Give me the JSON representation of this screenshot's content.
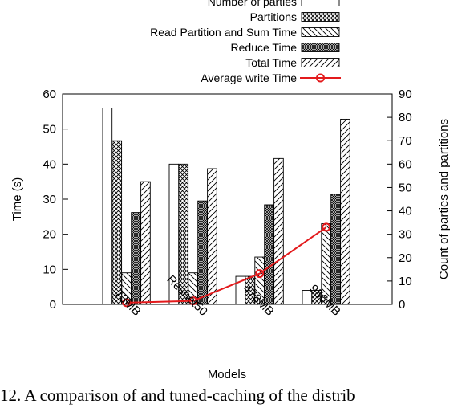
{
  "caption": "12. A comparison of and tuned-caching of the distrib",
  "chart_data": {
    "type": "bar",
    "title": "",
    "xlabel": "Models",
    "ylabel": "Time (s)",
    "y2label": "Count of parties and partitions",
    "categories": [
      "73MB",
      "Resnet50",
      "478MB",
      "956MB"
    ],
    "ylim": [
      0,
      60
    ],
    "y2lim": [
      0,
      90
    ],
    "yticks": [
      0,
      10,
      20,
      30,
      40,
      50,
      60
    ],
    "y2ticks": [
      0,
      10,
      20,
      30,
      40,
      50,
      60,
      70,
      80,
      90
    ],
    "legend_position": "top-right",
    "grid": false,
    "series": [
      {
        "name": "Number of parties",
        "axis": "right",
        "pattern": "empty",
        "values": [
          84,
          60,
          12,
          6
        ]
      },
      {
        "name": "Partitions",
        "axis": "right",
        "pattern": "crosshatch",
        "values": [
          70,
          60,
          12,
          6
        ]
      },
      {
        "name": "Read Partition and Sum Time",
        "axis": "left",
        "pattern": "backslash",
        "values": [
          9,
          9,
          13.5,
          23
        ]
      },
      {
        "name": "Reduce Time",
        "axis": "left",
        "pattern": "dense",
        "values": [
          26.2,
          29.5,
          28.4,
          31.4
        ]
      },
      {
        "name": "Total Time",
        "axis": "left",
        "pattern": "slash",
        "values": [
          35,
          38.7,
          41.6,
          52.8
        ]
      }
    ],
    "line_series": {
      "name": "Average write Time",
      "axis": "left",
      "color": "#e31a1c",
      "values": [
        0.5,
        1,
        8.8,
        22
      ]
    }
  }
}
